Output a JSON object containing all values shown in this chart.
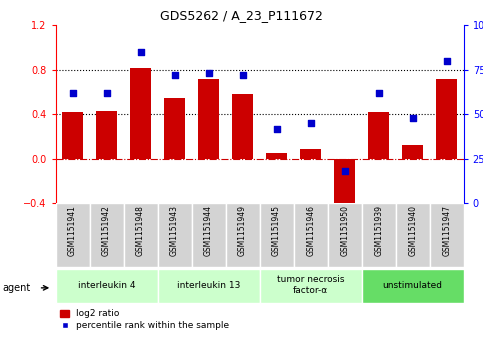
{
  "title": "GDS5262 / A_23_P111672",
  "samples": [
    "GSM1151941",
    "GSM1151942",
    "GSM1151948",
    "GSM1151943",
    "GSM1151944",
    "GSM1151949",
    "GSM1151945",
    "GSM1151946",
    "GSM1151950",
    "GSM1151939",
    "GSM1151940",
    "GSM1151947"
  ],
  "log2_ratio": [
    0.42,
    0.43,
    0.82,
    0.55,
    0.72,
    0.58,
    0.05,
    0.09,
    -0.48,
    0.42,
    0.12,
    0.72
  ],
  "percentile_rank": [
    62,
    62,
    85,
    72,
    73,
    72,
    42,
    45,
    18,
    62,
    48,
    80
  ],
  "groups": [
    {
      "label": "interleukin 4",
      "start": 0,
      "end": 3,
      "color": "#ccffcc"
    },
    {
      "label": "interleukin 13",
      "start": 3,
      "end": 6,
      "color": "#ccffcc"
    },
    {
      "label": "tumor necrosis\nfactor-α",
      "start": 6,
      "end": 9,
      "color": "#ccffcc"
    },
    {
      "label": "unstimulated",
      "start": 9,
      "end": 12,
      "color": "#66dd66"
    }
  ],
  "bar_color": "#cc0000",
  "dot_color": "#0000cc",
  "ylim_left": [
    -0.4,
    1.2
  ],
  "ylim_right": [
    0,
    100
  ],
  "yticks_left": [
    -0.4,
    0,
    0.4,
    0.8,
    1.2
  ],
  "yticks_right": [
    0,
    25,
    50,
    75,
    100
  ],
  "hlines": [
    0.4,
    0.8
  ],
  "background_color": "#ffffff",
  "sample_box_color": "#d3d3d3",
  "agent_label": "agent"
}
